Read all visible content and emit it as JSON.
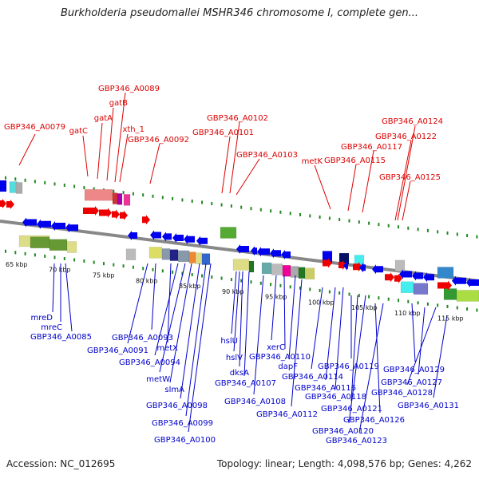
{
  "title": "Burkholderia pseudomallei MSHR346 chromosome I, complete gen...",
  "accession": "Accession: NC_012695",
  "topology": "Topology: linear; Length: 4,098,576 bp; Genes: 4,262",
  "colors": {
    "upper_label": "#dd0000",
    "lower_label": "#0000cc",
    "backbone": "#888888",
    "dots": "#228822"
  },
  "scale_ticks": [
    "65 kbp",
    "70 kbp",
    "75 kbp",
    "80 kbp",
    "85 kbp",
    "90 kbp",
    "95 kbp",
    "100 kbp",
    "105 kbp",
    "110 kbp",
    "115 kbp"
  ],
  "upper_labels": [
    "GBP346_A0079",
    "gatC",
    "gatA",
    "gatB",
    "GBP346_A0089",
    "xth_1",
    "GBP346_A0092",
    "GBP346_A0102",
    "GBP346_A0101",
    "GBP346_A0103",
    "metK",
    "GBP346_A0115",
    "GBP346_A0117",
    "GBP346_A0122",
    "GBP346_A0124",
    "GBP346_A0125"
  ],
  "lower_labels": [
    "mreD",
    "mreC",
    "GBP346_A0085",
    "GBP346_A0093",
    "GBP346_A0091",
    "metX",
    "GBP346_A0094",
    "metW",
    "slmA",
    "GBP346_A0098",
    "GBP346_A0099",
    "GBP346_A0100",
    "hslU",
    "hslV",
    "dksA",
    "GBP346_A0107",
    "GBP346_A0108",
    "xerC",
    "GBP346_A0110",
    "dapF",
    "GBP346_A0112",
    "GBP346_A0114",
    "GBP346_A0116",
    "GBP346_A0118",
    "GBP346_A0119",
    "GBP346_A0121",
    "GBP346_A0120",
    "GBP346_A0126",
    "GBP346_A0123",
    "GBP346_A0129",
    "GBP346_A0127",
    "GBP346_A0128",
    "GBP346_A0131"
  ]
}
